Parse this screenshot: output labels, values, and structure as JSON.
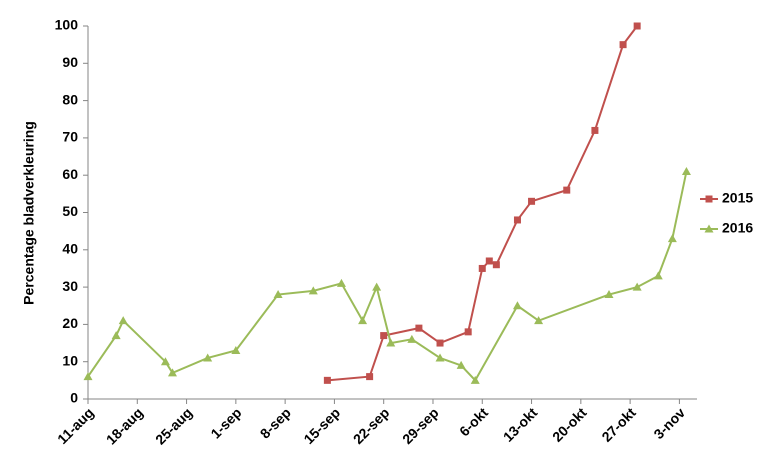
{
  "chart_data": {
    "type": "line",
    "y_label": "Percentage bladverkleuring",
    "xlim": [
      0,
      86.5
    ],
    "xticks": [
      {
        "value": 0,
        "label": "11-aug"
      },
      {
        "value": 7,
        "label": "18-aug"
      },
      {
        "value": 14,
        "label": "25-aug"
      },
      {
        "value": 21,
        "label": "1-sep"
      },
      {
        "value": 28,
        "label": "8-sep"
      },
      {
        "value": 35,
        "label": "15-sep"
      },
      {
        "value": 42,
        "label": "22-sep"
      },
      {
        "value": 49,
        "label": "29-sep"
      },
      {
        "value": 56,
        "label": "6-okt"
      },
      {
        "value": 63,
        "label": "13-okt"
      },
      {
        "value": 70,
        "label": "20-okt"
      },
      {
        "value": 77,
        "label": "27-okt"
      },
      {
        "value": 84,
        "label": "3-nov"
      }
    ],
    "ylim": [
      0,
      100
    ],
    "yticks": [
      0,
      10,
      20,
      30,
      40,
      50,
      60,
      70,
      80,
      90,
      100
    ],
    "grid": false,
    "legend": "right",
    "series": [
      {
        "name": "2015",
        "color": "#c0504d",
        "marker": "square",
        "x": [
          34,
          40,
          42,
          47,
          50,
          54,
          56,
          57,
          58,
          61,
          63,
          68,
          72,
          76,
          78
        ],
        "values": [
          5,
          6,
          17,
          19,
          15,
          18,
          35,
          37,
          36,
          48,
          53,
          56,
          72,
          95,
          100
        ]
      },
      {
        "name": "2016",
        "color": "#9bbb59",
        "marker": "triangle",
        "x": [
          0,
          4,
          5,
          11,
          12,
          17,
          21,
          27,
          32,
          36,
          39,
          41,
          43,
          46,
          50,
          53,
          55,
          61,
          64,
          74,
          78,
          81,
          83,
          85
        ],
        "values": [
          6,
          17,
          21,
          10,
          7,
          11,
          13,
          28,
          29,
          31,
          21,
          30,
          15,
          16,
          11,
          9,
          5,
          25,
          21,
          28,
          30,
          33,
          43,
          61
        ]
      }
    ]
  }
}
